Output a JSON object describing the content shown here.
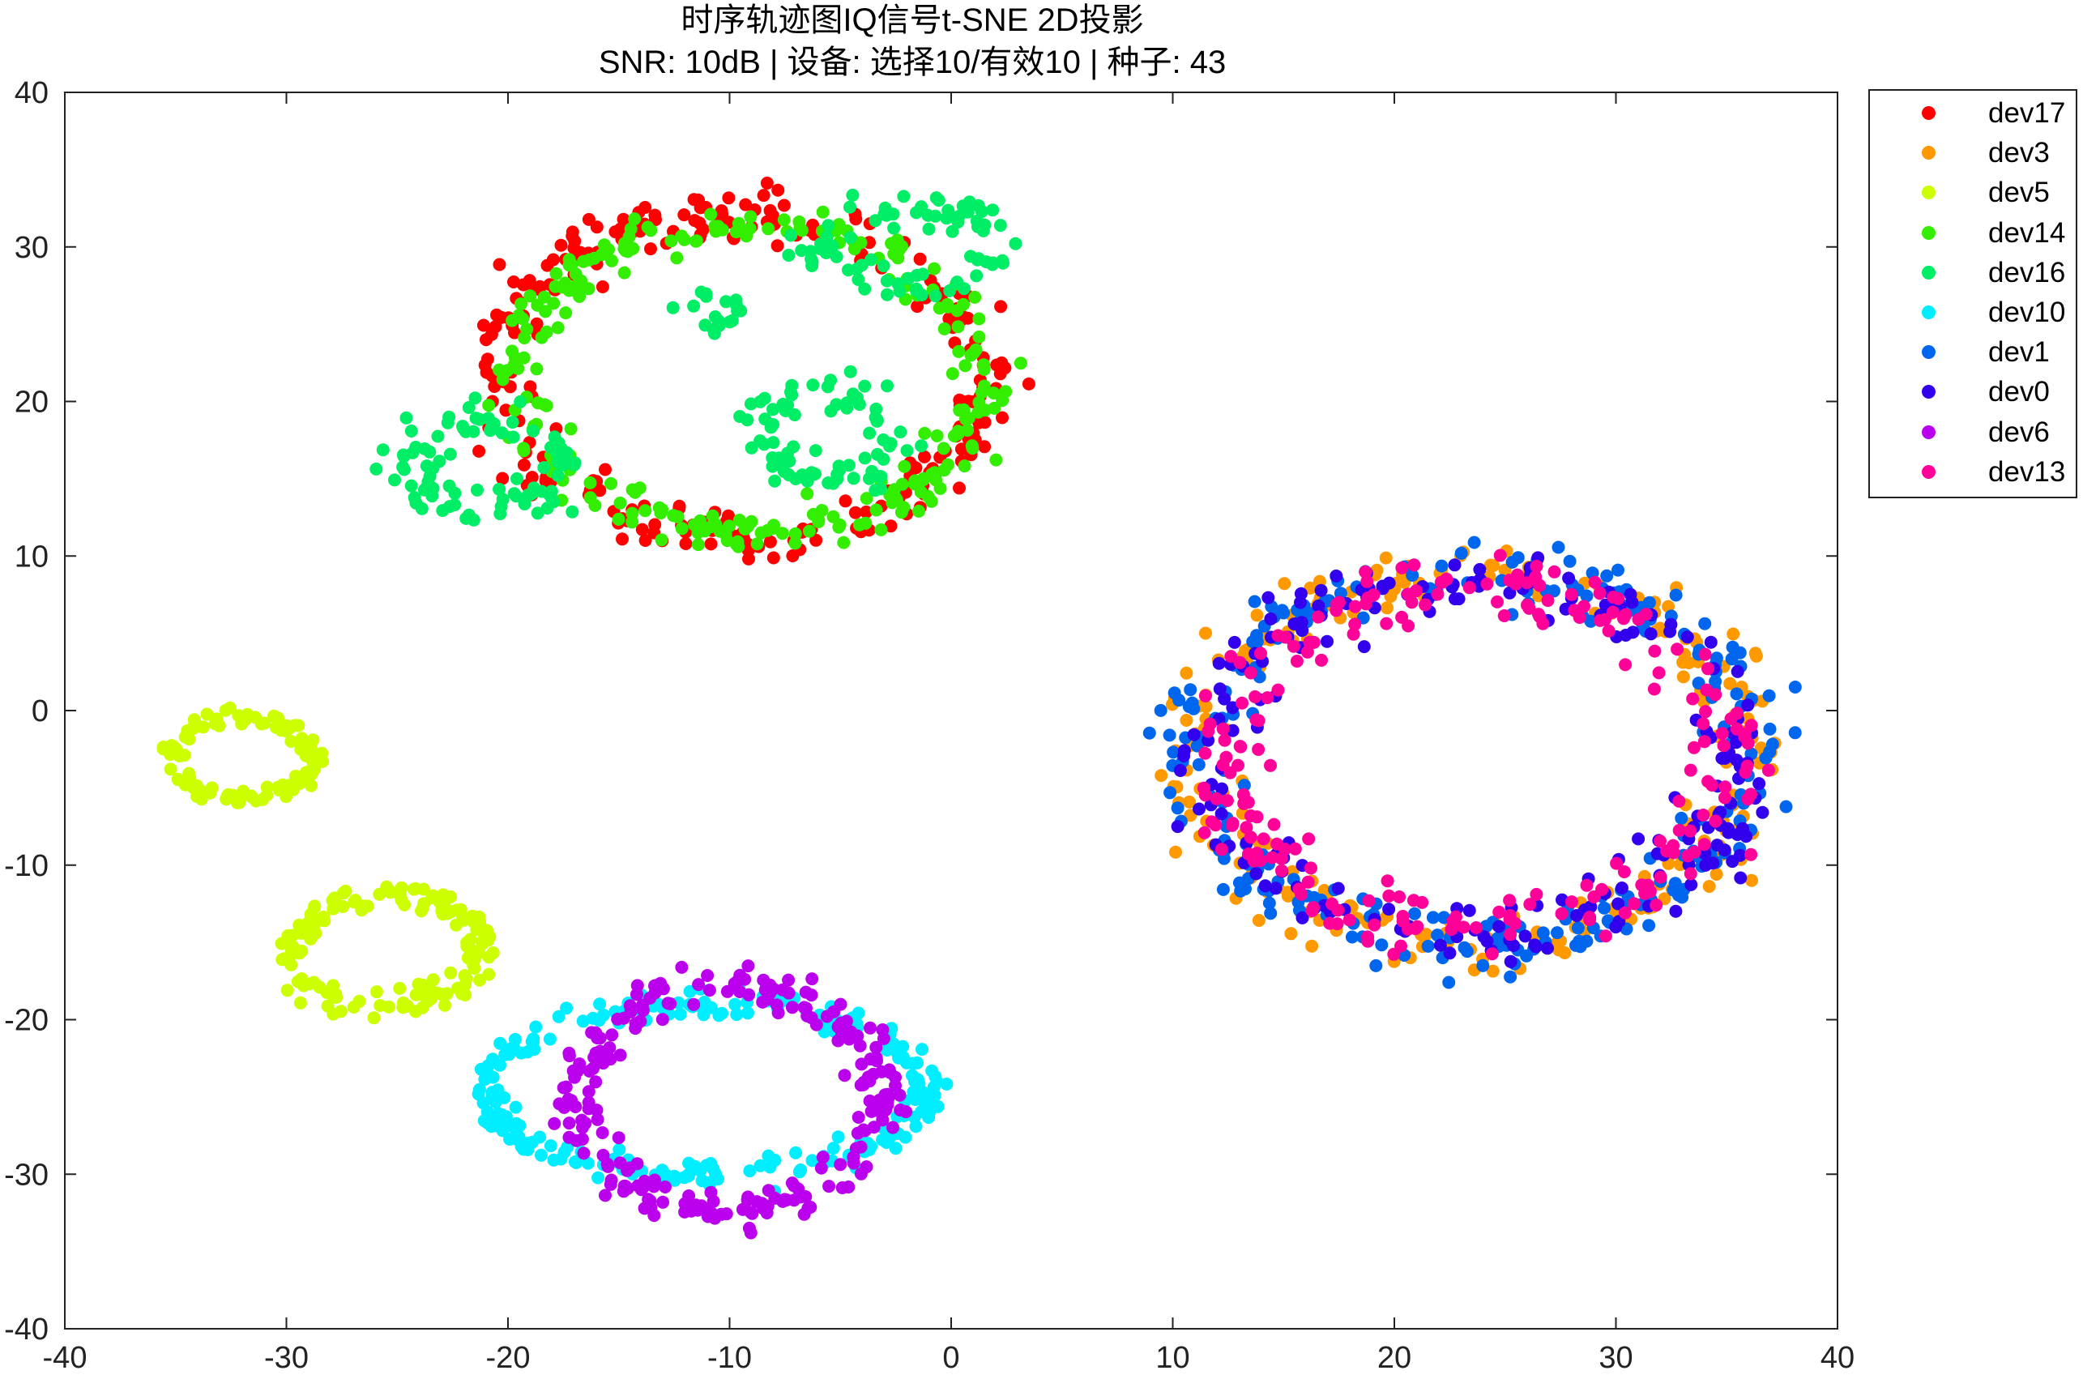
{
  "chart_data": {
    "type": "scatter",
    "title": "时序轨迹图IQ信号t-SNE 2D投影",
    "subtitle": "SNR: 10dB | 设备: 选择10/有效10 | 种子: 43",
    "xlim": [
      -40,
      40
    ],
    "ylim": [
      -40,
      40
    ],
    "xticks": [
      -40,
      -30,
      -20,
      -10,
      0,
      10,
      20,
      30,
      40
    ],
    "yticks": [
      -40,
      -30,
      -20,
      -10,
      0,
      10,
      20,
      30,
      40
    ],
    "grid": false,
    "legend_position": "outside-top-right",
    "series": [
      {
        "name": "dev17",
        "color": "#ff0000",
        "clusters": [
          {
            "cx": -9.5,
            "cy": 21.5,
            "rx": 11,
            "ry": 10.5,
            "w": 1.8,
            "n": 260,
            "rot": -12
          }
        ]
      },
      {
        "name": "dev3",
        "color": "#ff9900",
        "clusters": [
          {
            "cx": 23.5,
            "cy": -3,
            "rx": 12.5,
            "ry": 12,
            "w": 2.2,
            "n": 230,
            "rot": 0
          }
        ]
      },
      {
        "name": "dev5",
        "color": "#ccff00",
        "clusters": [
          {
            "cx": -32,
            "cy": -3,
            "rx": 3.2,
            "ry": 2.6,
            "w": 0.6,
            "n": 110,
            "rot": 0
          },
          {
            "cx": -25.5,
            "cy": -15.5,
            "rx": 4.3,
            "ry": 3.5,
            "w": 0.9,
            "n": 160,
            "rot": 15
          }
        ]
      },
      {
        "name": "dev14",
        "color": "#33ee00",
        "clusters": [
          {
            "cx": -9,
            "cy": 21.5,
            "rx": 10.5,
            "ry": 10,
            "w": 1.6,
            "n": 260,
            "rot": -12
          }
        ]
      },
      {
        "name": "dev16",
        "color": "#00ee66",
        "clusters": [
          {
            "cx": -21,
            "cy": 16,
            "rx": 3.4,
            "ry": 2.8,
            "w": 1.6,
            "n": 90,
            "rot": 0
          },
          {
            "cx": -2,
            "cy": 30,
            "rx": 4,
            "ry": 2.5,
            "w": 1.4,
            "n": 80,
            "rot": 0
          },
          {
            "cx": -5.5,
            "cy": 18,
            "rx": 3,
            "ry": 3,
            "w": 1.4,
            "n": 80,
            "rot": 0
          },
          {
            "cx": -11,
            "cy": 26,
            "rx": 1.2,
            "ry": 1.0,
            "w": 0.5,
            "n": 18,
            "rot": 0
          }
        ]
      },
      {
        "name": "dev10",
        "color": "#00eeff",
        "clusters": [
          {
            "cx": -11,
            "cy": -24.5,
            "rx": 10,
            "ry": 5.5,
            "w": 1.1,
            "n": 240,
            "rot": 0
          }
        ]
      },
      {
        "name": "dev1",
        "color": "#0066ee",
        "clusters": [
          {
            "cx": 23.5,
            "cy": -3,
            "rx": 12.5,
            "ry": 12,
            "w": 2.2,
            "n": 260,
            "rot": 0
          }
        ]
      },
      {
        "name": "dev0",
        "color": "#3300ee",
        "clusters": [
          {
            "cx": 23.5,
            "cy": -3,
            "rx": 12,
            "ry": 11.5,
            "w": 2.2,
            "n": 200,
            "rot": 0
          }
        ]
      },
      {
        "name": "dev6",
        "color": "#bb00ee",
        "clusters": [
          {
            "cx": -10,
            "cy": -25,
            "rx": 6.8,
            "ry": 7.5,
            "w": 1.3,
            "n": 240,
            "rot": 0
          }
        ]
      },
      {
        "name": "dev13",
        "color": "#ff0099",
        "clusters": [
          {
            "cx": 23.5,
            "cy": -3,
            "rx": 11.5,
            "ry": 11,
            "w": 2.2,
            "n": 230,
            "rot": 0
          }
        ]
      }
    ]
  }
}
